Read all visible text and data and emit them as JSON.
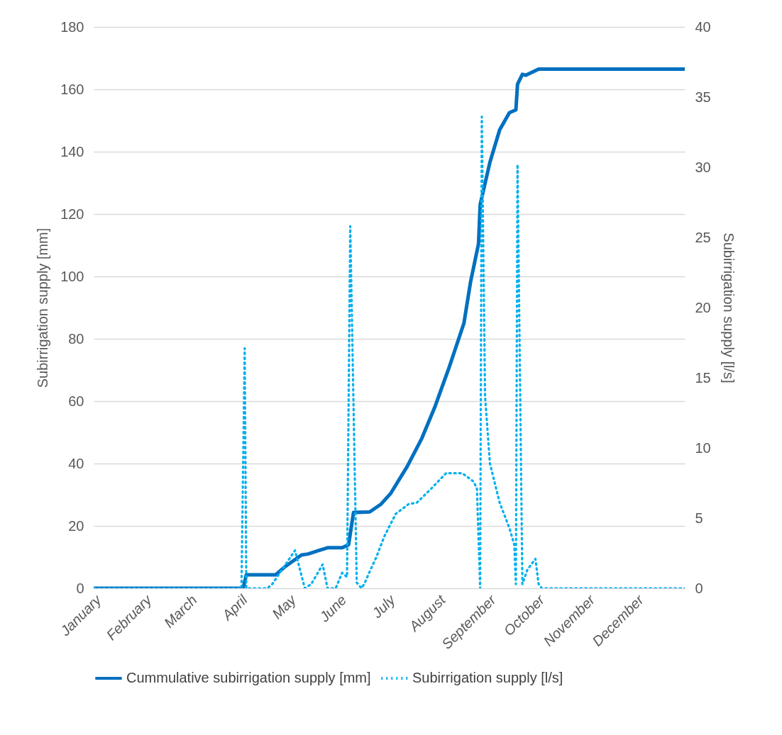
{
  "chart_data": {
    "type": "line",
    "ylabel": "Subirrigation supply [mm]",
    "y2label": "Subirrigation supply [l/s]",
    "xlim": [
      "--01-01",
      "--12-31"
    ],
    "xticks": [
      {
        "value": "--01-01",
        "label": "January"
      },
      {
        "value": "--02-01",
        "label": "February"
      },
      {
        "value": "--03-01",
        "label": "March"
      },
      {
        "value": "--04-01",
        "label": "April"
      },
      {
        "value": "--05-01",
        "label": "May"
      },
      {
        "value": "--06-01",
        "label": "June"
      },
      {
        "value": "--07-01",
        "label": "July"
      },
      {
        "value": "--08-01",
        "label": "August"
      },
      {
        "value": "--09-01",
        "label": "September"
      },
      {
        "value": "--10-01",
        "label": "October"
      },
      {
        "value": "--11-01",
        "label": "November"
      },
      {
        "value": "--12-01",
        "label": "December"
      }
    ],
    "ylim": [
      0,
      180
    ],
    "yticks": [
      0,
      20,
      40,
      60,
      80,
      100,
      120,
      140,
      160,
      180
    ],
    "y2lim": [
      0,
      40
    ],
    "y2ticks": [
      0,
      5,
      10,
      15,
      20,
      25,
      30,
      35,
      40
    ],
    "grid": "y",
    "legend": "bottom",
    "marker": "none",
    "series": [
      {
        "name": "Cummulative subirrigation supply [mm]",
        "color": "#0070c0",
        "line_style": "solid",
        "x": [
          "--01-01",
          "--04-03",
          "--04-05",
          "--04-23",
          "--04-29",
          "--05-09",
          "--05-13",
          "--05-19",
          "--05-25",
          "--06-03",
          "--06-07",
          "--06-10",
          "--06-20",
          "--06-27",
          "--07-03",
          "--07-13",
          "--07-22",
          "--07-30",
          "--08-08",
          "--08-17",
          "--08-21",
          "--08-26",
          "--08-27",
          "--09-02",
          "--09-08",
          "--09-14",
          "--09-18",
          "--09-19",
          "--09-22",
          "--09-24",
          "--10-02",
          "--12-31"
        ],
        "values": [
          0,
          0,
          4.3,
          4.3,
          7,
          10.7,
          11,
          12,
          13,
          13,
          14,
          24.3,
          24.5,
          27,
          30.5,
          39,
          48,
          58,
          71,
          85,
          98,
          110.5,
          123,
          136.6,
          147,
          152.5,
          153.4,
          161.6,
          164.8,
          164.5,
          166.5,
          166.5
        ]
      },
      {
        "name": "Subirrigation supply [l/s]",
        "color": "#00b0f0",
        "line_style": "dotted",
        "axis": "y2",
        "x": [
          "--01-01",
          "--04-02",
          "--04-04",
          "--04-05",
          "--04-18",
          "--04-21",
          "--05-05",
          "--05-11",
          "--05-15",
          "--05-22",
          "--05-25",
          "--05-30",
          "--06-03",
          "--06-06",
          "--06-08",
          "--06-12",
          "--06-15",
          "--06-17",
          "--06-20",
          "--06-24",
          "--06-29",
          "--07-06",
          "--07-14",
          "--07-19",
          "--07-27",
          "--08-06",
          "--08-16",
          "--08-23",
          "--08-25",
          "--08-27",
          "--08-28",
          "--08-30",
          "--09-02",
          "--09-08",
          "--09-14",
          "--09-17",
          "--09-18",
          "--09-19",
          "--09-22",
          "--09-25",
          "--09-30",
          "--10-02",
          "--10-04",
          "--12-31"
        ],
        "values": [
          0,
          0,
          17.1,
          0,
          0,
          0.3,
          2.7,
          0,
          0.3,
          1.7,
          0,
          0,
          1.1,
          0.8,
          25.8,
          0.4,
          0,
          0.4,
          1.2,
          2.2,
          3.7,
          5.3,
          6.0,
          6.1,
          7.0,
          8.2,
          8.2,
          7.6,
          7.1,
          0,
          33.6,
          13.7,
          8.9,
          6.1,
          4.3,
          3.1,
          0.3,
          30.2,
          0.3,
          1.3,
          2.1,
          0.3,
          0,
          0
        ]
      }
    ]
  }
}
